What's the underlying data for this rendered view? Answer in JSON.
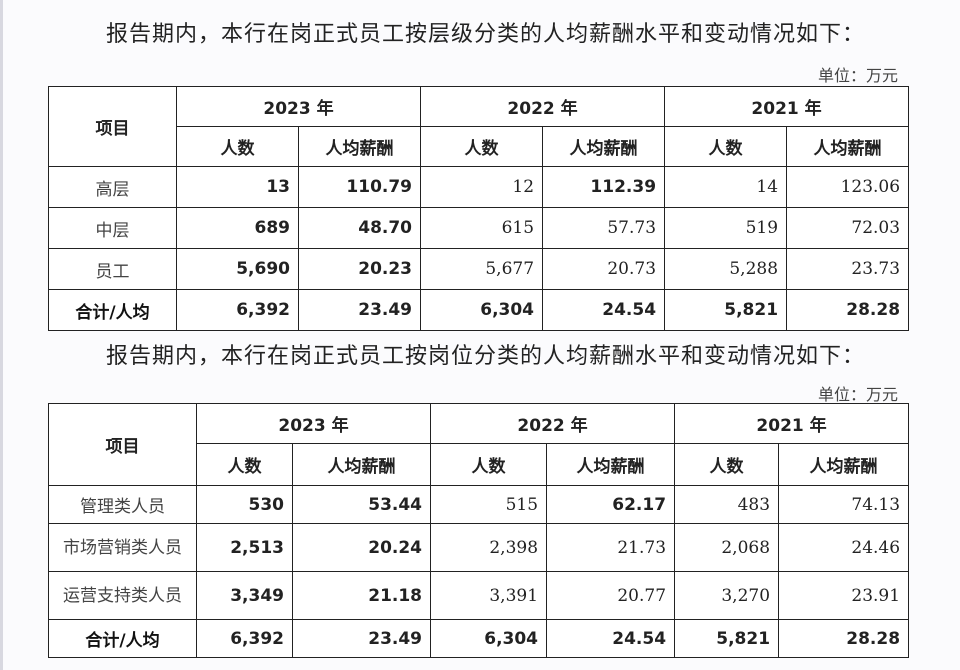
{
  "section1": {
    "intro": "报告期内，本行在岗正式员工按层级分类的人均薪酬水平和变动情况如下：",
    "unit": "单位：万元",
    "header": {
      "item": "项目",
      "years": [
        "2023 年",
        "2022 年",
        "2021 年"
      ],
      "count": "人数",
      "avg_pay": "人均薪酬"
    },
    "rows": [
      {
        "label": "高层",
        "v": [
          "13",
          "110.79",
          "12",
          "112.39",
          "14",
          "123.06"
        ]
      },
      {
        "label": "中层",
        "v": [
          "689",
          "48.70",
          "615",
          "57.73",
          "519",
          "72.03"
        ]
      },
      {
        "label": "员工",
        "v": [
          "5,690",
          "20.23",
          "5,677",
          "20.73",
          "5,288",
          "23.73"
        ]
      },
      {
        "label": "合计/人均",
        "v": [
          "6,392",
          "23.49",
          "6,304",
          "24.54",
          "5,821",
          "28.28"
        ]
      }
    ]
  },
  "section2": {
    "intro": "报告期内，本行在岗正式员工按岗位分类的人均薪酬水平和变动情况如下：",
    "unit": "单位：万元",
    "header": {
      "item": "项目",
      "years": [
        "2023 年",
        "2022 年",
        "2021 年"
      ],
      "count": "人数",
      "avg_pay": "人均薪酬"
    },
    "rows": [
      {
        "label": "管理类人员",
        "v": [
          "530",
          "53.44",
          "515",
          "62.17",
          "483",
          "74.13"
        ]
      },
      {
        "label": "市场营销类人员",
        "v": [
          "2,513",
          "20.24",
          "2,398",
          "21.73",
          "2,068",
          "24.46"
        ]
      },
      {
        "label": "运营支持类人员",
        "v": [
          "3,349",
          "21.18",
          "3,391",
          "20.77",
          "3,270",
          "23.91"
        ]
      },
      {
        "label": "合计/人均",
        "v": [
          "6,392",
          "23.49",
          "6,304",
          "24.54",
          "5,821",
          "28.28"
        ]
      }
    ]
  }
}
